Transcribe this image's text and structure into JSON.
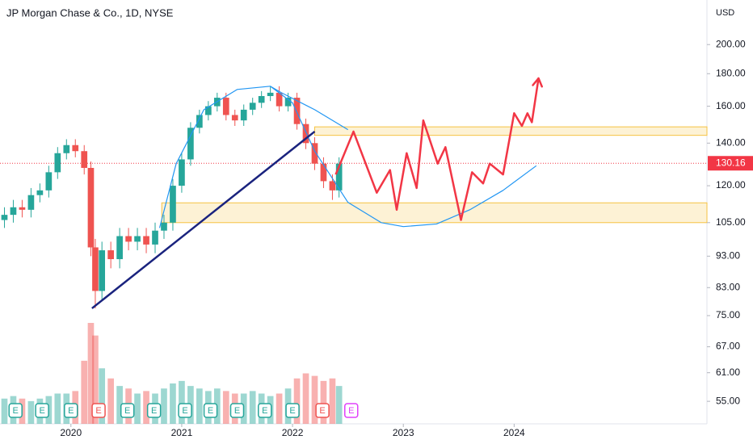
{
  "chart_data": {
    "type": "candlestick",
    "title": "JP Morgan Chase & Co., 1D, NYSE",
    "currency": "USD",
    "log_scale": true,
    "grid": false,
    "up_color": "#26a69a",
    "down_color": "#ef5350",
    "xlim": [
      2019.36,
      2025.74
    ],
    "xticks": [
      2020,
      2021,
      2022,
      2023,
      2024
    ],
    "ylim": [
      50.7,
      235
    ],
    "yticks": [
      {
        "value": 55,
        "label": "55.00"
      },
      {
        "value": 61,
        "label": "61.00"
      },
      {
        "value": 67,
        "label": "67.00"
      },
      {
        "value": 75,
        "label": "75.00"
      },
      {
        "value": 83,
        "label": "83.00"
      },
      {
        "value": 93,
        "label": "93.00"
      },
      {
        "value": 105,
        "label": "105.00"
      },
      {
        "value": 120,
        "label": "120.00"
      },
      {
        "value": 140,
        "label": "140.00"
      },
      {
        "value": 160,
        "label": "160.00"
      },
      {
        "value": 180,
        "label": "180.00"
      },
      {
        "value": 200,
        "label": "200.00"
      }
    ],
    "last_price": 130.16,
    "last_price_color": "#f23645",
    "x": [
      2019.4,
      2019.48,
      2019.56,
      2019.64,
      2019.72,
      2019.8,
      2019.88,
      2019.96,
      2020.04,
      2020.12,
      2020.18,
      2020.22,
      2020.28,
      2020.36,
      2020.44,
      2020.52,
      2020.6,
      2020.68,
      2020.76,
      2020.84,
      2020.92,
      2021.0,
      2021.08,
      2021.16,
      2021.24,
      2021.32,
      2021.4,
      2021.48,
      2021.56,
      2021.64,
      2021.72,
      2021.8,
      2021.88,
      2021.96,
      2022.04,
      2022.12,
      2022.2,
      2022.28,
      2022.36,
      2022.42
    ],
    "open": [
      106,
      108,
      111,
      110,
      116,
      118,
      126,
      135,
      139,
      136,
      128,
      96,
      82,
      95,
      92,
      100,
      98,
      100,
      97,
      102,
      105,
      120,
      132,
      148,
      155,
      160,
      165,
      155,
      152,
      158,
      162,
      166,
      168,
      160,
      165,
      150,
      140,
      130,
      122,
      118
    ],
    "high": [
      111,
      114,
      114,
      119,
      121,
      129,
      138,
      142,
      142,
      139,
      131,
      99,
      98,
      98,
      103,
      103,
      103,
      103,
      105,
      108,
      123,
      135,
      151,
      158,
      163,
      168,
      168,
      158,
      161,
      165,
      169,
      172,
      172,
      168,
      168,
      153,
      143,
      133,
      125,
      133
    ],
    "low": [
      103,
      105,
      107,
      107,
      113,
      115,
      123,
      132,
      133,
      125,
      93,
      77,
      79,
      89,
      89,
      95,
      95,
      94,
      94,
      99,
      102,
      117,
      129,
      145,
      152,
      157,
      152,
      149,
      149,
      155,
      159,
      163,
      157,
      157,
      147,
      137,
      127,
      119,
      114,
      115
    ],
    "close": [
      108,
      111,
      110,
      116,
      118,
      126,
      135,
      139,
      136,
      128,
      96,
      82,
      95,
      92,
      100,
      98,
      100,
      97,
      102,
      105,
      120,
      132,
      148,
      155,
      160,
      165,
      155,
      152,
      158,
      162,
      166,
      168,
      160,
      165,
      150,
      140,
      130,
      122,
      118,
      130
    ],
    "volume": [
      10,
      11,
      10,
      9,
      10,
      11,
      12,
      12,
      13,
      25,
      40,
      35,
      22,
      18,
      15,
      14,
      12,
      13,
      12,
      14,
      16,
      17,
      15,
      14,
      13,
      14,
      13,
      12,
      12,
      13,
      12,
      11,
      12,
      14,
      18,
      20,
      19,
      17,
      18,
      15
    ],
    "earnings": [
      {
        "x": 2019.5,
        "label": "E",
        "color": "#26a69a"
      },
      {
        "x": 2019.74,
        "label": "E",
        "color": "#26a69a"
      },
      {
        "x": 2020.0,
        "label": "E",
        "color": "#26a69a"
      },
      {
        "x": 2020.25,
        "label": "E",
        "color": "#ef5350"
      },
      {
        "x": 2020.51,
        "label": "E",
        "color": "#26a69a"
      },
      {
        "x": 2020.75,
        "label": "E",
        "color": "#26a69a"
      },
      {
        "x": 2021.03,
        "label": "E",
        "color": "#26a69a"
      },
      {
        "x": 2021.26,
        "label": "E",
        "color": "#26a69a"
      },
      {
        "x": 2021.5,
        "label": "E",
        "color": "#26a69a"
      },
      {
        "x": 2021.75,
        "label": "E",
        "color": "#26a69a"
      },
      {
        "x": 2022.0,
        "label": "E",
        "color": "#26a69a"
      },
      {
        "x": 2022.27,
        "label": "E",
        "color": "#ef5350"
      },
      {
        "x": 2022.53,
        "label": "E",
        "color": "#e040fb"
      }
    ],
    "drawings": {
      "zones": [
        {
          "x": [
            2020.82,
            2025.74
          ],
          "y": [
            105,
            112.8
          ],
          "color": "#f5c242"
        },
        {
          "x": [
            2022.2,
            2025.74
          ],
          "y": [
            144,
            148.5
          ],
          "color": "#f5c242"
        }
      ],
      "trendline": {
        "x": [
          2020.19,
          2022.2
        ],
        "y": [
          77,
          146
        ],
        "color": "#1a237e"
      },
      "arcs": [
        {
          "x": [
            2020.8,
            2020.95,
            2021.2,
            2021.5,
            2021.8,
            2022.0,
            2022.2,
            2022.5,
            2022.8,
            2023.0,
            2023.3,
            2023.6,
            2023.9,
            2024.2
          ],
          "y": [
            103,
            130,
            158,
            170,
            172,
            162,
            136,
            113,
            105,
            103.5,
            104.5,
            110,
            118,
            129
          ],
          "color": "#2196f3"
        },
        {
          "x": [
            2021.8,
            2021.9,
            2022.2,
            2022.5
          ],
          "y": [
            172,
            168,
            158,
            147
          ],
          "color": "#2196f3"
        }
      ],
      "projection": {
        "x": [
          2022.39,
          2022.55,
          2022.76,
          2022.88,
          2022.94,
          2023.03,
          2023.12,
          2023.18,
          2023.31,
          2023.38,
          2023.52,
          2023.62,
          2023.72,
          2023.78,
          2023.9,
          2024.0,
          2024.07,
          2024.12,
          2024.16,
          2024.22
        ],
        "y": [
          125,
          146,
          117,
          127,
          110,
          135,
          119,
          152,
          130,
          138,
          106,
          126,
          121,
          130,
          125,
          156,
          149,
          156,
          151,
          177
        ],
        "color": "#f23645"
      }
    }
  }
}
